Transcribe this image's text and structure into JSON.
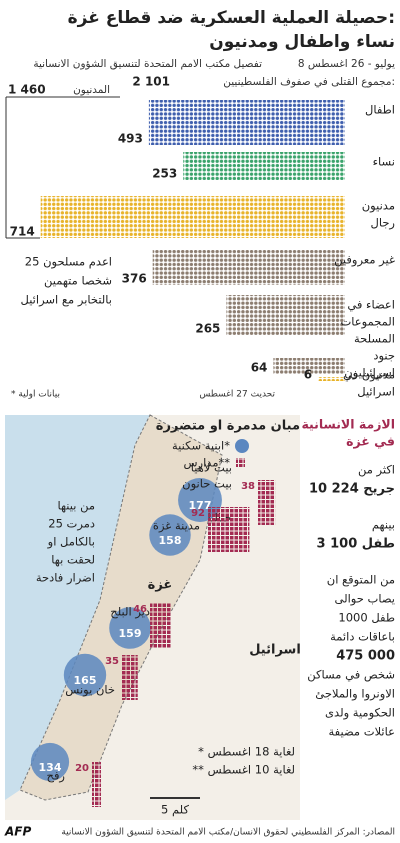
{
  "header": {
    "title_line1": "حصيلة العملية العسكرية ضد قطاع غزة:",
    "title_line2": "نساء واطفال ومدنيون",
    "date_range": "8 يوليو - 26 اغسطس",
    "source_note": "تفصيل مكتب الامم المتحدة لتنسيق الشؤون الانسانية",
    "total_label": "مجموع القتلى في صفوف الفلسطينيين:",
    "total_value": "2 101",
    "civilians_label": "المدنيون",
    "civilians_value": "1 460"
  },
  "casualties": {
    "rows": [
      {
        "label": [
          "اطفال"
        ],
        "value": 493,
        "color": "#3f5fae"
      },
      {
        "label": [
          "نساء"
        ],
        "value": 253,
        "color": "#3aa36b"
      },
      {
        "label": [
          "مدنيون",
          "رجال"
        ],
        "value": 714,
        "color": "#e8b32a"
      },
      {
        "label": [
          "غير معروفين"
        ],
        "value": 376,
        "color": "#8c7d70"
      },
      {
        "label": [
          "اعضاء في",
          "المجموعات",
          "المسلحة"
        ],
        "value": 265,
        "color": "#8c7d70"
      },
      {
        "label": [
          "جنود",
          "اسرائيليون"
        ],
        "value": 64,
        "color": "#8c7d70"
      },
      {
        "label": [
          "مدنيون في",
          "اسرائيل"
        ],
        "value": 6,
        "color": "#e8b32a"
      }
    ],
    "executed_note": [
      "اعدم مسلحون 25",
      "شخصا متهمين",
      "بالتخابر مع اسرائيل"
    ],
    "update_note": "تحديث 27 اغسطس",
    "preliminary_note": "* بيانات اولية"
  },
  "crisis": {
    "title": [
      "الازمة الانسانية",
      "في غزة"
    ],
    "items": [
      [
        "اكثر من",
        "10 224 جريح"
      ],
      [
        "بينهم",
        "3 100 طفل"
      ],
      [
        "من المتوقع ان",
        "يصاب حوالى",
        "1000 طفل",
        "باعاقات دائمة"
      ],
      [
        "475 000",
        "شخص في مساكن",
        "الاونروا والملاجئ",
        "الحكومية ولدى",
        "عائلات مضيفة"
      ]
    ]
  },
  "map": {
    "title": "مبان مدمرة او متضررة",
    "legend_homes": "ابنية سكنية*",
    "legend_schools": "مدارس**",
    "home_color": "#5b87c0",
    "school_color": "#a32b52",
    "footnotes": [
      "* لغاية 18 اغسطس",
      "** لغاية 10 اغسطس"
    ],
    "destroyed_note": [
      "من بينها",
      "25 دمرت",
      "بالكامل او",
      "لحقت بها",
      "اضرار فادحة"
    ],
    "gaza_label": "غزة",
    "israel_label": "اسرائيل",
    "scale_label": "5 كلم",
    "areas": [
      {
        "names": [
          "بيت لاهيا",
          "بيت حانون",
          "جباليا"
        ],
        "homes": 177,
        "schools": 38
      },
      {
        "names": [
          "مدينة غزة"
        ],
        "homes": 158,
        "schools": 92
      },
      {
        "names": [
          "دير البلح"
        ],
        "homes": 159,
        "schools": 46
      },
      {
        "names": [
          "خان يونس"
        ],
        "homes": 165,
        "schools": 35
      },
      {
        "names": [
          "رفح"
        ],
        "homes": 134,
        "schools": 20
      }
    ]
  },
  "footer": {
    "sources": "المصادر: المركز الفلسطيني لحقوق الانسان/مكتب الامم المتحدة لتنسيق الشؤون الانسانية",
    "agency": "AFP"
  }
}
